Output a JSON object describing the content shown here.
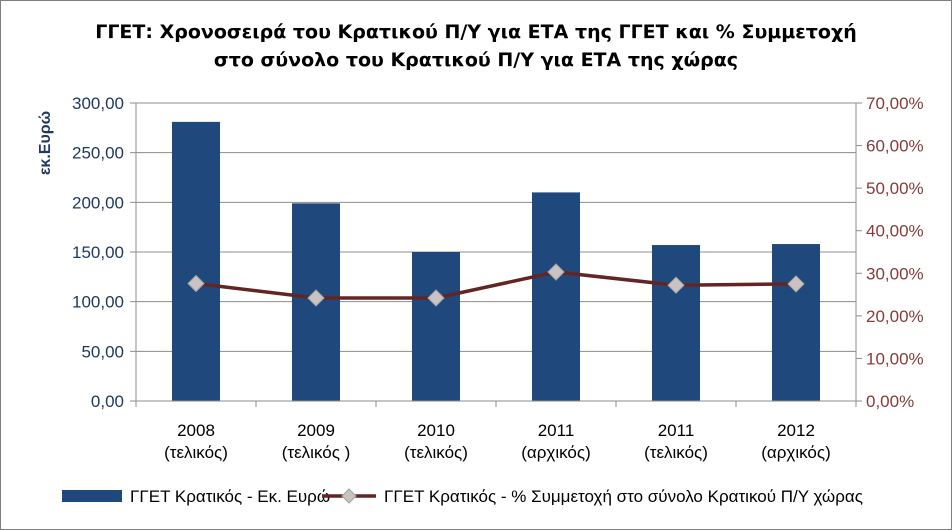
{
  "chart_data": {
    "type": "bar",
    "title": [
      "ΓΓΕΤ: Χρονοσειρά του Κρατικού Π/Υ για ΕΤΑ της ΓΓΕΤ και % Συμμετοχή",
      "στο σύνολο του Κρατικού Π/Υ για ΕΤΑ της χώρας"
    ],
    "ylabel": "εκ.Ευρώ",
    "y2label": "",
    "categories": [
      [
        "2008",
        "(τελικός)"
      ],
      [
        "2009",
        "(τελικός )"
      ],
      [
        "2010",
        "(τελικός)"
      ],
      [
        "2011",
        "(αρχικός)"
      ],
      [
        "2011",
        "(τελικός)"
      ],
      [
        "2012",
        "(αρχικός)"
      ]
    ],
    "ylim": [
      0,
      300
    ],
    "y_ticks": [
      "0,00",
      "50,00",
      "100,00",
      "150,00",
      "200,00",
      "250,00",
      "300,00"
    ],
    "y2lim": [
      0,
      70
    ],
    "y2_ticks": [
      "0,00%",
      "10,00%",
      "20,00%",
      "30,00%",
      "40,00%",
      "50,00%",
      "60,00%",
      "70,00%"
    ],
    "grid": true,
    "legend_position": "bottom",
    "series": [
      {
        "name": "ΓΓΕΤ Κρατικός - Εκ. Ευρώ",
        "type": "bar",
        "axis": "left",
        "color": "#1f497d",
        "values": [
          281,
          199,
          150,
          210,
          157,
          158
        ]
      },
      {
        "name": "ΓΓΕΤ Κρατικός - % Συμμετοχή στο σύνολο Κρατικού Π/Υ χώρας",
        "type": "line",
        "axis": "right",
        "color": "#632523",
        "marker_color": "#c9c3c3",
        "values": [
          27.6,
          24.2,
          24.2,
          30.3,
          27.2,
          27.5
        ]
      }
    ],
    "colors": {
      "left_axis_text": "#1f3864",
      "right_axis_text": "#843c39"
    }
  }
}
